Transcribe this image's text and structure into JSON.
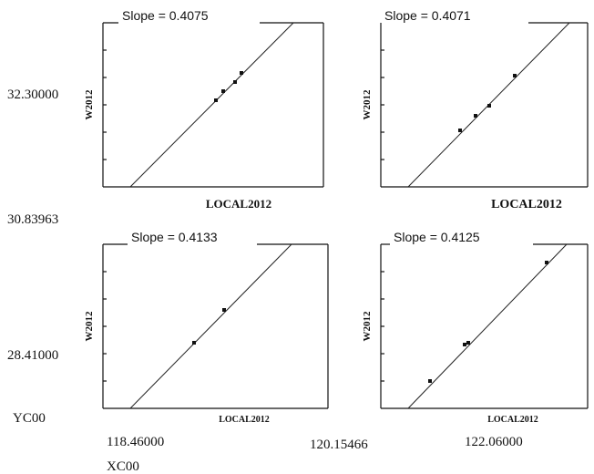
{
  "panels": [
    {
      "slope_label": "Slope = 0.4075",
      "y_label": "W2012",
      "x_label": "LOCAL2012"
    },
    {
      "slope_label": "Slope = 0.4071",
      "y_label": "W2012",
      "x_label": "LOCAL2012"
    },
    {
      "slope_label": "Slope = 0.4133",
      "y_label": "W2012",
      "x_label": "LOCAL2012"
    },
    {
      "slope_label": "Slope = 0.4125",
      "y_label": "W2012",
      "x_label": "LOCAL2012"
    }
  ],
  "outer_labels": {
    "y_top": "32.30000",
    "y_mid": "30.83963",
    "y_bottom": "28.41000",
    "y_name": "YC00",
    "x_left": "118.46000",
    "x_mid": "120.15466",
    "x_right": "122.06000",
    "x_name": "XC00"
  }
}
